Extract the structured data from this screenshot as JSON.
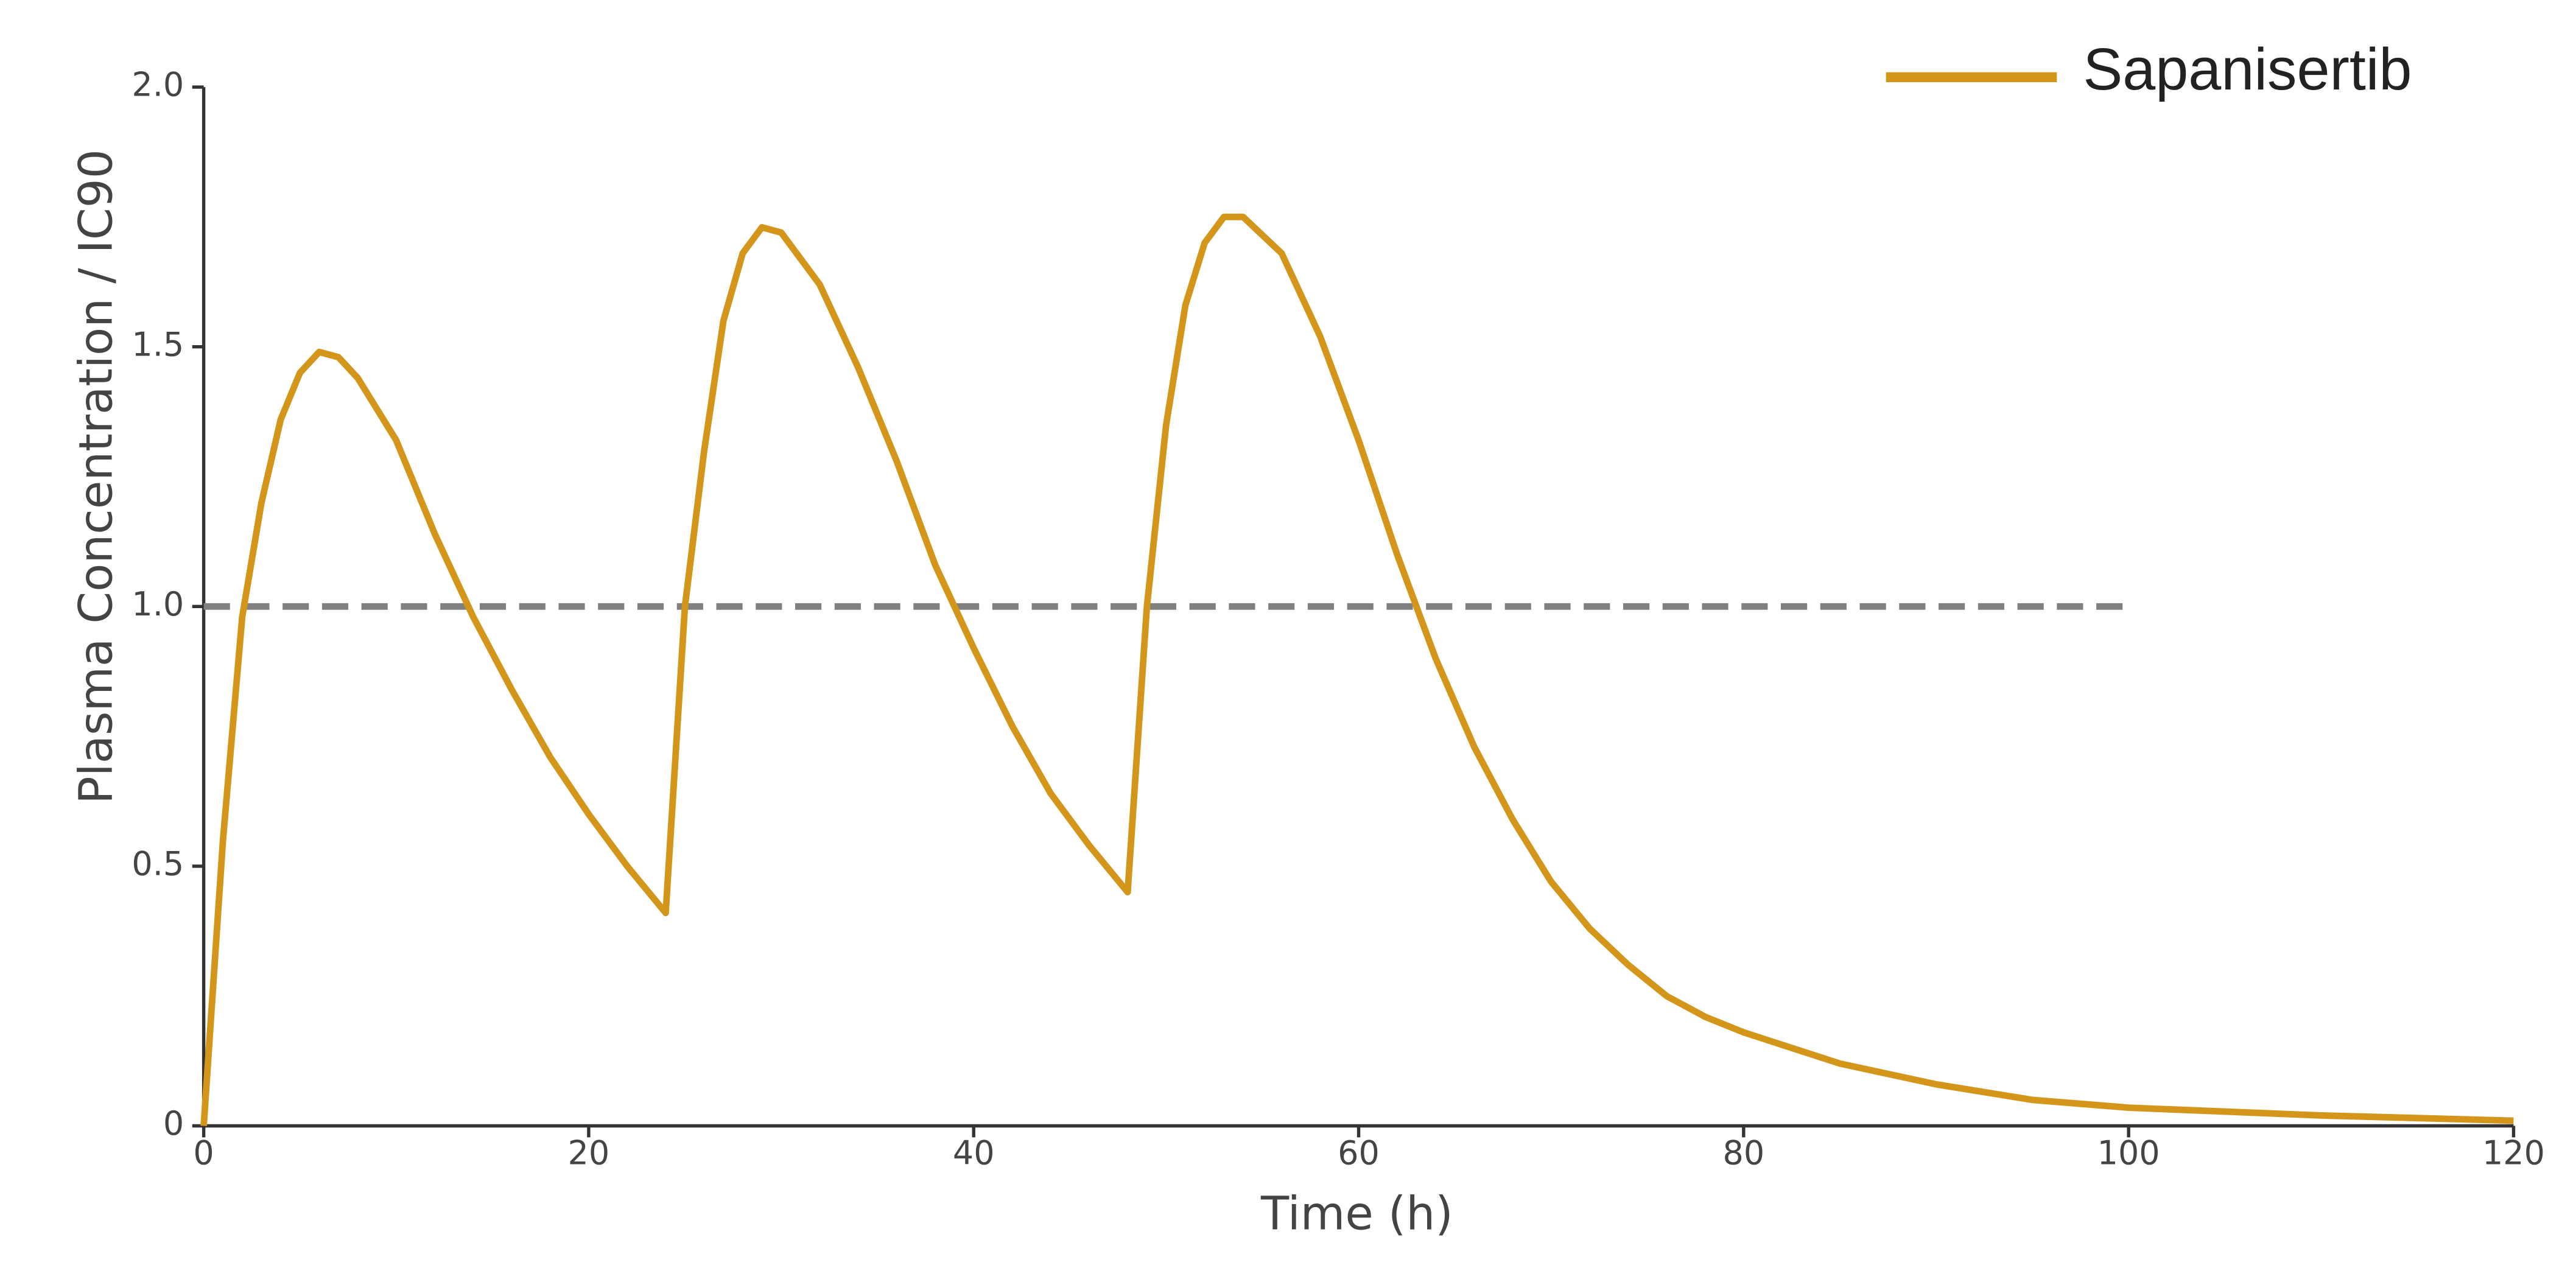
{
  "chart_data": {
    "type": "line",
    "x_label": "Time (h)",
    "y_label": "Plasma Concentration / IC90",
    "x": [
      0,
      1,
      2,
      3,
      4,
      5,
      6,
      7,
      8,
      10,
      12,
      14,
      16,
      18,
      20,
      22,
      24,
      25,
      26,
      27,
      28,
      29,
      30,
      32,
      34,
      36,
      38,
      40,
      42,
      44,
      46,
      48,
      49,
      50,
      51,
      52,
      53,
      54,
      56,
      58,
      60,
      62,
      64,
      66,
      68,
      70,
      72,
      74,
      76,
      78,
      80,
      85,
      90,
      95,
      100,
      110,
      120
    ],
    "series": [
      {
        "name": "Sapanisertib",
        "color": "#d4961a",
        "values": [
          0,
          0.55,
          0.98,
          1.2,
          1.36,
          1.45,
          1.49,
          1.48,
          1.44,
          1.32,
          1.14,
          0.98,
          0.84,
          0.71,
          0.6,
          0.5,
          0.41,
          1.0,
          1.3,
          1.55,
          1.68,
          1.73,
          1.72,
          1.62,
          1.46,
          1.28,
          1.08,
          0.92,
          0.77,
          0.64,
          0.54,
          0.45,
          1.0,
          1.35,
          1.58,
          1.7,
          1.75,
          1.75,
          1.68,
          1.52,
          1.32,
          1.1,
          0.9,
          0.73,
          0.59,
          0.47,
          0.38,
          0.31,
          0.25,
          0.21,
          0.18,
          0.12,
          0.08,
          0.05,
          0.035,
          0.02,
          0.01
        ]
      }
    ],
    "reference_line": {
      "y": 1,
      "xlim": [
        0,
        100
      ],
      "color": "#808080"
    },
    "xlim": [
      0,
      120
    ],
    "xticks": [
      0,
      20,
      40,
      60,
      80,
      100,
      120
    ],
    "ylim": [
      0,
      2
    ],
    "yticks": [
      0,
      0.5,
      {
        "value": 1,
        "label": "1.0"
      },
      1.5,
      {
        "value": 2,
        "label": "2.0"
      }
    ],
    "legend": "upper right"
  }
}
